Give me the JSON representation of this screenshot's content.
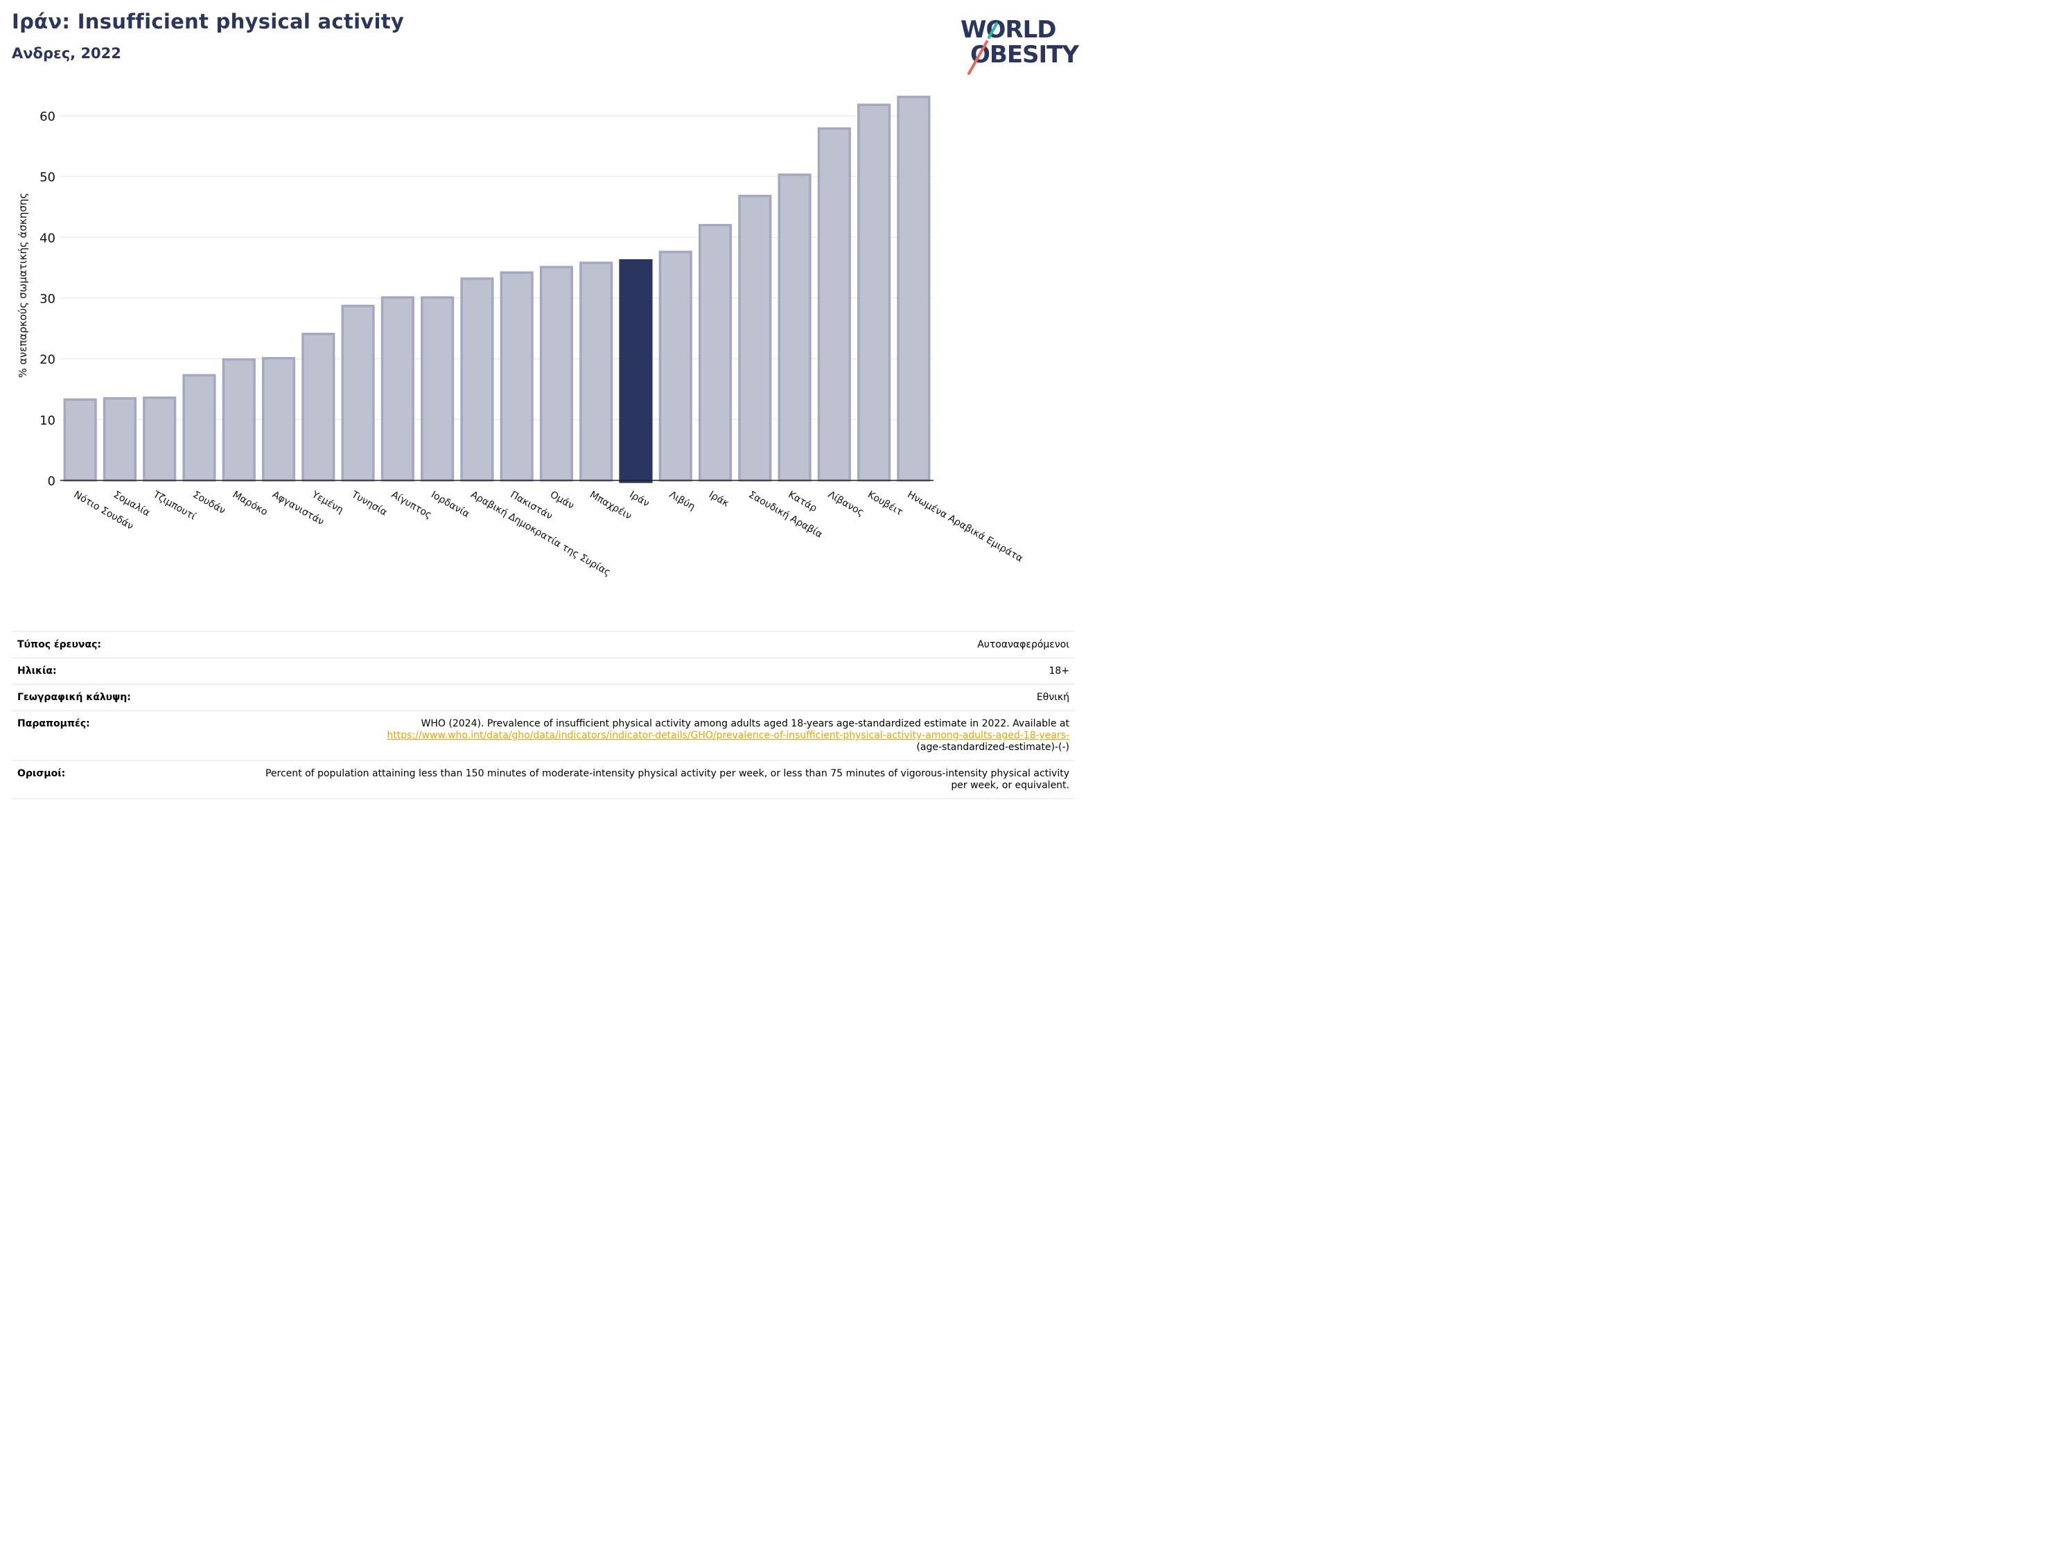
{
  "title": "Ιράν: Insufficient physical activity",
  "subtitle": "Ανδρες, 2022",
  "logo": {
    "line1": "WORLD",
    "line2": "OBESITY"
  },
  "colors": {
    "bar_fill": "#bec1cf",
    "bar_stroke": "#a5a9bf",
    "highlight": "#2a3560",
    "grid": "#e6e8f0",
    "logo_teal": "#2ab7b2",
    "logo_coral": "#e8695a"
  },
  "chart_data": {
    "type": "bar",
    "ylabel": "% ανεπαρκούς σωματικής άσκησης",
    "ylim": [
      0,
      65
    ],
    "yticks": [
      0,
      10,
      20,
      30,
      40,
      50,
      60
    ],
    "grid": true,
    "highlight": "Ιράν",
    "categories": [
      "Νότιο Σουδάν",
      "Σομαλία",
      "Τζιμπουτί",
      "Σουδάν",
      "Μαρόκο",
      "Αφγανιστάν",
      "Υεμένη",
      "Τυνησία",
      "Αίγυπτος",
      "Ιορδανία",
      "Αραβική Δημοκρατία της Συρίας",
      "Πακιστάν",
      "Ομάν",
      "Μπαχρέιν",
      "Ιράν",
      "Λιβύη",
      "Ιράκ",
      "Σαουδική Αραβία",
      "Κατάρ",
      "Λίβανος",
      "Κουβέιτ",
      "Ηνωμένα Αραβικά Εμιράτα"
    ],
    "values": [
      13.3,
      13.5,
      13.6,
      17.3,
      19.9,
      20.1,
      24.1,
      28.7,
      30.1,
      30.1,
      33.2,
      34.2,
      35.1,
      35.8,
      36.2,
      37.6,
      42.0,
      46.8,
      50.3,
      57.9,
      61.8,
      63.1
    ]
  },
  "meta": [
    {
      "key": "Τύπος έρευνας:",
      "value": "Αυτοαναφερόμενοι"
    },
    {
      "key": "Ηλικία:",
      "value": "18+"
    },
    {
      "key": "Γεωγραφική κάλυψη:",
      "value": "Εθνική"
    },
    {
      "key": "Παραπομπές:",
      "value": "WHO (2024). Prevalence of insufficient physical activity among adults aged 18-years age-standardized estimate in 2022. Available at",
      "link": "https://www.who.int/data/gho/data/indicators/indicator-details/GHO/prevalence-of-insufficient-physical-activity-among-adults-aged-18-years-",
      "value_tail": "(age-standardized-estimate)-(-)"
    },
    {
      "key": "Ορισμοί:",
      "value": "Percent of population attaining less than 150 minutes of moderate-intensity physical activity per week, or less than 75 minutes of vigorous-intensity physical activity per week, or equivalent."
    }
  ]
}
